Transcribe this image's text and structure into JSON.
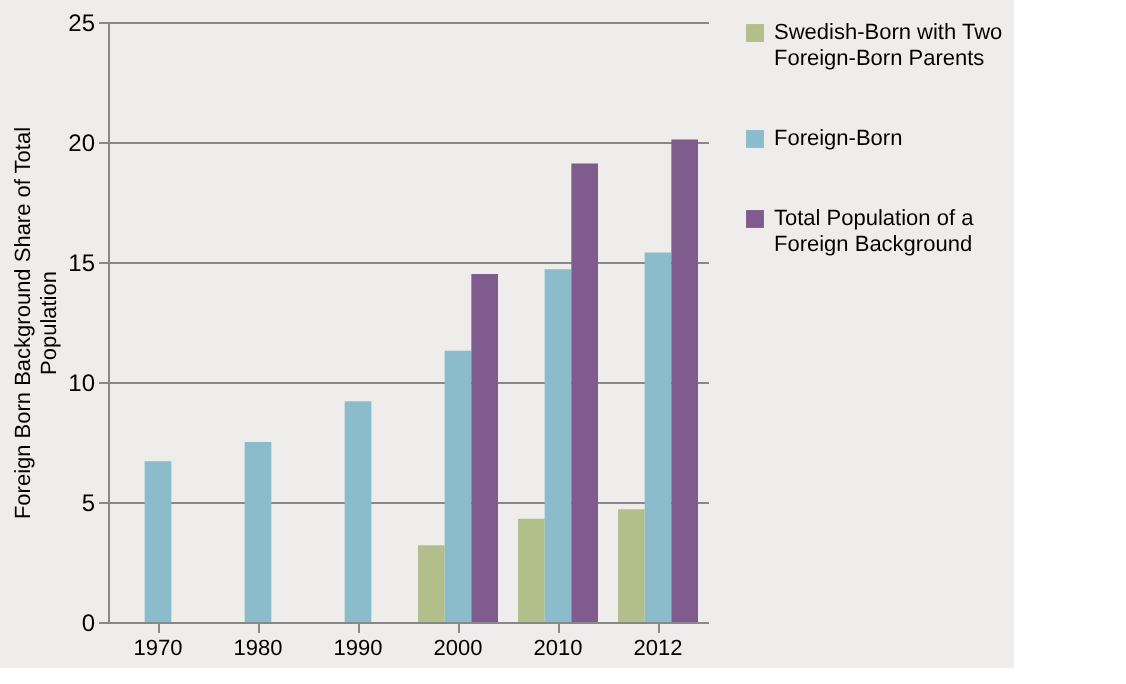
{
  "chart_data": {
    "type": "bar",
    "ylabel": "Foreign Born Background Share of Total Population",
    "categories": [
      "1970",
      "1980",
      "1990",
      "2000",
      "2010",
      "2012"
    ],
    "series": [
      {
        "name": "Swedish-Born with Two Foreign-Born Parents",
        "color": "#b3bf8a",
        "values": [
          null,
          null,
          null,
          3.2,
          4.3,
          4.7
        ]
      },
      {
        "name": "Foreign-Born",
        "color": "#8abccb",
        "values": [
          6.7,
          7.5,
          9.2,
          11.3,
          14.7,
          15.4
        ]
      },
      {
        "name": "Total Population of a Foreign Background",
        "color": "#7f5c8d",
        "values": [
          null,
          null,
          null,
          14.5,
          19.1,
          20.1
        ]
      }
    ],
    "ylim": [
      0,
      25
    ],
    "yticks": [
      0,
      5,
      10,
      15,
      20,
      25
    ],
    "grid": "y",
    "legend": "right"
  }
}
